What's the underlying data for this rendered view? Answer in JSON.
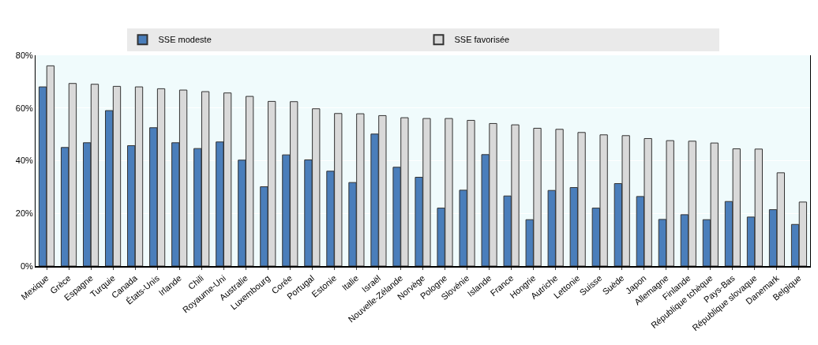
{
  "chart_data": {
    "type": "bar",
    "categories": [
      "Mexique",
      "Grèce",
      "Espagne",
      "Turquie",
      "Canada",
      "États-Unis",
      "Irlande",
      "Chili",
      "Royaume-Uni",
      "Australie",
      "Luxembourg",
      "Corée",
      "Portugal",
      "Estonie",
      "Italie",
      "Israël",
      "Nouvelle-Zélande",
      "Norvège",
      "Pologne",
      "Slovénie",
      "Islande",
      "France",
      "Hongrie",
      "Autriche",
      "Lettonie",
      "Suisse",
      "Suède",
      "Japon",
      "Allemagne",
      "Finlande",
      "République tchèque",
      "Pays-Bas",
      "République slovaque",
      "Danemark",
      "Belgique"
    ],
    "series": [
      {
        "name": "SSE modeste",
        "color": "#4a7ebb",
        "values": [
          68,
          45,
          46.8,
          59,
          45.7,
          52.5,
          46.8,
          44.6,
          47.1,
          40.2,
          30.1,
          42.2,
          40.3,
          36,
          31.7,
          50.1,
          37.5,
          33.7,
          22,
          28.8,
          42.3,
          26.6,
          17.6,
          28.7,
          29.8,
          22,
          31.3,
          26.4,
          17.7,
          19.5,
          17.6,
          24.5,
          18.6,
          21.4,
          15.8
        ]
      },
      {
        "name": "SSE favorisée",
        "color": "#d9d9d9",
        "values": [
          76,
          69.3,
          69,
          68.2,
          68,
          67.3,
          66.8,
          66.2,
          65.7,
          64.4,
          62.5,
          62.4,
          59.7,
          57.9,
          57.8,
          57.1,
          56.3,
          56,
          56,
          55.3,
          54.1,
          53.6,
          52.3,
          51.9,
          50.7,
          49.8,
          49.5,
          48.4,
          47.6,
          47.4,
          46.7,
          44.5,
          44.4,
          35.4,
          24.3
        ]
      }
    ],
    "ylim": [
      0,
      80
    ],
    "yticks": [
      {
        "value": 0,
        "label": "0%"
      },
      {
        "value": 20,
        "label": "20%"
      },
      {
        "value": 40,
        "label": "40%"
      },
      {
        "value": 60,
        "label": "60%"
      },
      {
        "value": 80,
        "label": "80%"
      }
    ],
    "grid": "y",
    "legend": "top"
  }
}
